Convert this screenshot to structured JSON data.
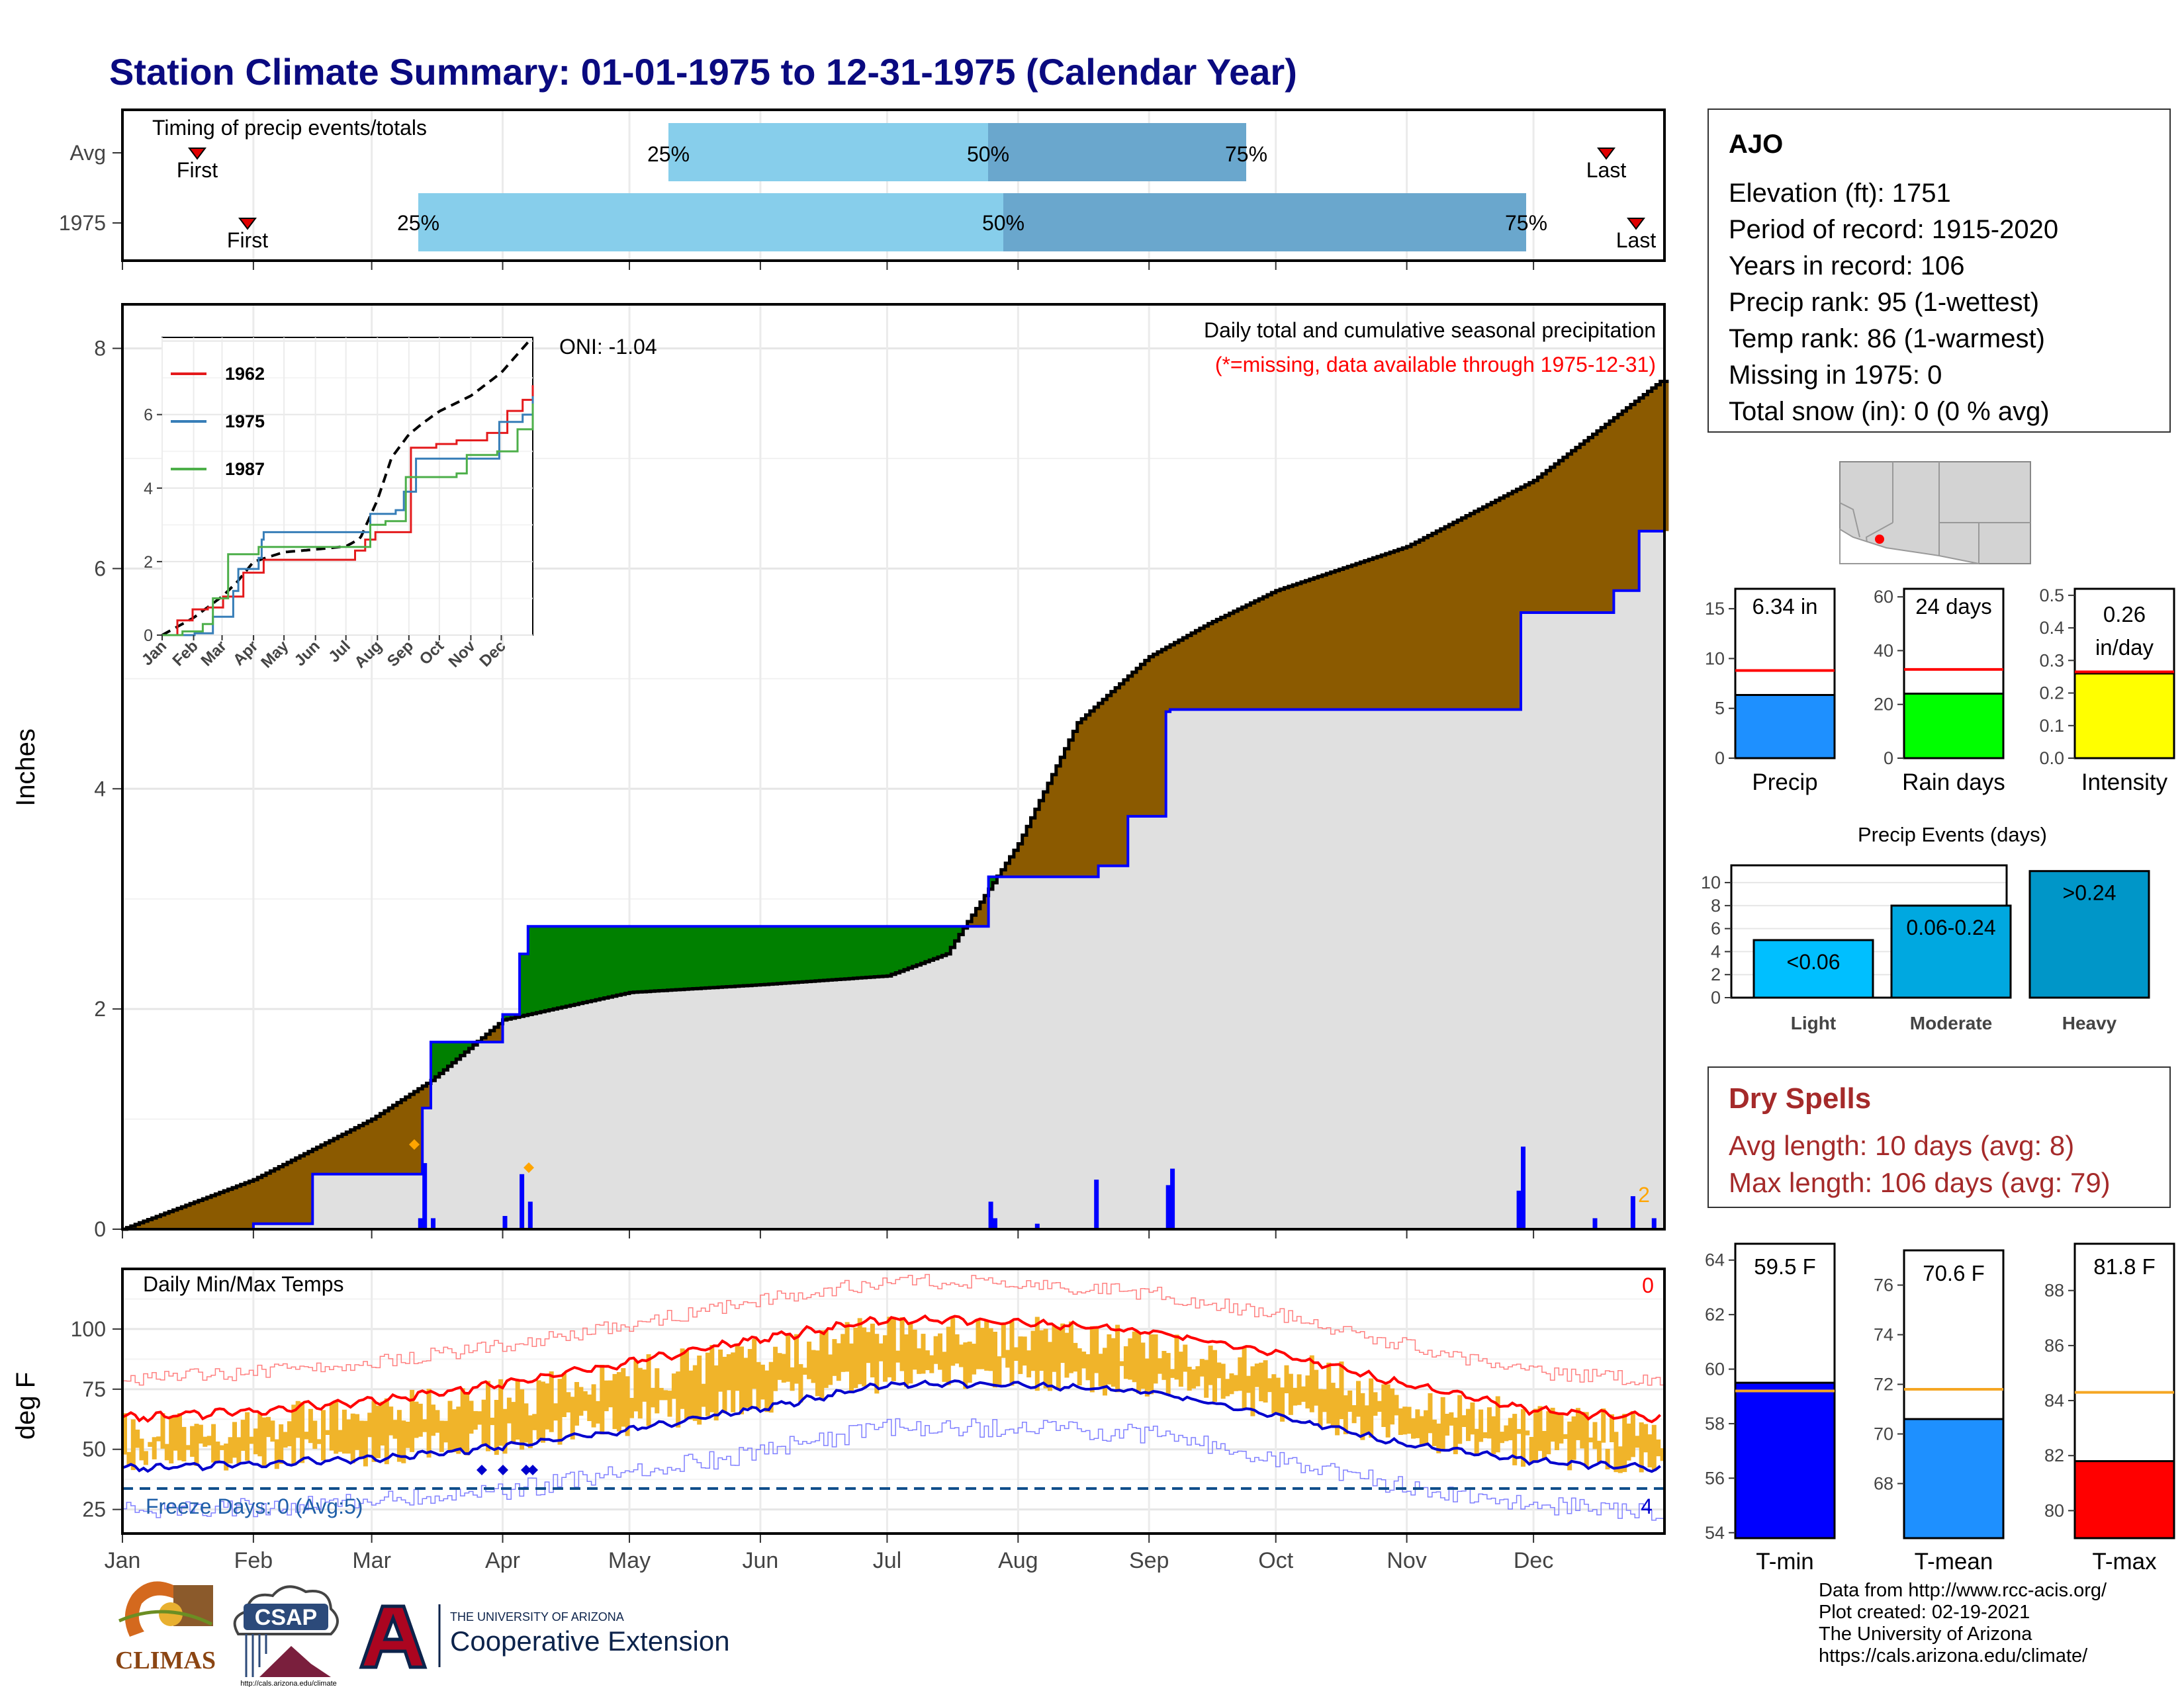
{
  "title": "Station Climate Summary: 01-01-1975 to 12-31-1975 (Calendar Year)",
  "colors": {
    "title": "#0a0a80",
    "q_light": "#87ceeb",
    "q_dark": "#6aa7cd",
    "surplus": "#008000",
    "deficit": "#8b5a00",
    "area_gray": "#e0e0e0",
    "cum_line": "#0000ff",
    "daily_bar": "#0000ff",
    "marker": "#ffa500",
    "temp_bar": "#f0b42a",
    "tmax_line": "#ff0000",
    "tmin_line": "#0000cd",
    "precip_bar": "#1e90ff",
    "raindays_bar": "#00ff00",
    "intensity_bar": "#ffff00",
    "events_bar": "#00a8e0",
    "tmin_bar": "#0000ff",
    "tmean_bar": "#1e90ff",
    "tmax_bar": "#ff0000",
    "dry_text": "#a52a2a",
    "avg_line": "#ff0000",
    "temp_avg_line": "#f5a623"
  },
  "timing": {
    "title": "Timing of precip events/totals",
    "rows": [
      "Avg",
      "1975"
    ],
    "first_label": "First",
    "last_label": "Last",
    "p25": "25%",
    "p50": "50%",
    "p75": "75%"
  },
  "precip": {
    "ylabel": "Inches",
    "annot_title": "Daily total and cumulative seasonal precipitation",
    "annot_missing": "(*=missing, data available through 1975-12-31)",
    "oni": "ONI: -1.04",
    "corner_count": "2",
    "y_ticks": [
      "0",
      "2",
      "4",
      "6",
      "8"
    ]
  },
  "inset": {
    "legend": [
      "1962",
      "1975",
      "1987"
    ],
    "y_ticks": [
      "0",
      "2",
      "4",
      "6"
    ],
    "months": [
      "Jan",
      "Feb",
      "Mar",
      "Apr",
      "May",
      "Jun",
      "Jul",
      "Aug",
      "Sep",
      "Oct",
      "Nov",
      "Dec"
    ]
  },
  "temps": {
    "title": "Daily Min/Max Temps",
    "ylabel": "deg F",
    "freeze": "Freeze Days: 0 (Avg:5)",
    "corner_top": "0",
    "corner_bottom": "4",
    "y_ticks": [
      "25",
      "50",
      "75",
      "100"
    ]
  },
  "months": [
    "Jan",
    "Feb",
    "Mar",
    "Apr",
    "May",
    "Jun",
    "Jul",
    "Aug",
    "Sep",
    "Oct",
    "Nov",
    "Dec"
  ],
  "station": {
    "name": "AJO",
    "elevation": "Elevation (ft): 1751",
    "period": "Period of record: 1915-2020",
    "years": "Years in record: 106",
    "precip_rank": "Precip rank: 95 (1-wettest)",
    "temp_rank": "Temp rank: 86 (1-warmest)",
    "missing": "Missing in 1975: 0",
    "snow": "Total snow (in): 0 (0 % avg)"
  },
  "mini_bars": [
    {
      "label": "Precip",
      "value_label": "6.34 in",
      "value": 6.34,
      "avg": 8.8,
      "max": 17,
      "ticks": [
        "0",
        "5",
        "10",
        "15"
      ]
    },
    {
      "label": "Rain days",
      "value_label": "24 days",
      "value": 24,
      "avg": 33,
      "max": 63,
      "ticks": [
        "0",
        "20",
        "40",
        "60"
      ]
    },
    {
      "label": "Intensity",
      "value_label_1": "0.26",
      "value_label_2": "in/day",
      "value": 0.26,
      "avg": 0.265,
      "max": 0.52,
      "ticks": [
        "0.0",
        "0.1",
        "0.2",
        "0.3",
        "0.4",
        "0.5"
      ]
    }
  ],
  "events": {
    "title": "Precip Events (days)",
    "categories": [
      "Light",
      "Moderate",
      "Heavy"
    ],
    "bar_labels": [
      "<0.06",
      "0.06-0.24",
      ">0.24"
    ],
    "values": [
      5,
      8,
      11
    ],
    "ticks": [
      "0",
      "2",
      "4",
      "6",
      "8",
      "10"
    ]
  },
  "dry": {
    "title": "Dry Spells",
    "avg": "Avg length: 10 days (avg: 8)",
    "max": "Max length: 106 days (avg: 79)"
  },
  "temp_bars": [
    {
      "label": "T-min",
      "value_label": "59.5 F",
      "value": 59.5,
      "avg": 59.2,
      "ymin": 53.8,
      "ymax": 64.6,
      "ticks": [
        "54",
        "56",
        "58",
        "60",
        "62",
        "64"
      ]
    },
    {
      "label": "T-mean",
      "value_label": "70.6 F",
      "value": 70.6,
      "avg": 71.8,
      "ymin": 65.8,
      "ymax": 77.4,
      "ticks": [
        "68",
        "70",
        "72",
        "74",
        "76"
      ]
    },
    {
      "label": "T-max",
      "value_label": "81.8 F",
      "value": 81.8,
      "avg": 84.3,
      "ymin": 79.0,
      "ymax": 89.7,
      "ticks": [
        "80",
        "82",
        "84",
        "86",
        "88"
      ]
    }
  ],
  "credits": [
    "Data from http://www.rcc-acis.org/",
    "Plot created: 02-19-2021",
    "The University of Arizona",
    "https://cals.arizona.edu/climate/"
  ],
  "logos": {
    "climas": "CLIMAS",
    "csap": "CSAP",
    "csap_url": "http://cals.arizona.edu/climate",
    "ua_letter": "A",
    "ua_small": "THE UNIVERSITY OF ARIZONA",
    "ua_big": "Cooperative Extension"
  },
  "chart_data": [
    {
      "type": "bar",
      "title": "Timing of precip events/totals",
      "categories": [
        "Avg",
        "1975"
      ],
      "series": [
        {
          "name": "First",
          "values": [
            "Jan 20",
            "Feb 3"
          ]
        },
        {
          "name": "25%",
          "values": [
            "May 1",
            "Mar 14"
          ]
        },
        {
          "name": "50%",
          "values": [
            "Jul 25",
            "Jul 30"
          ]
        },
        {
          "name": "75%",
          "values": [
            "Sep 20",
            "Dec 1"
          ]
        },
        {
          "name": "Last",
          "values": [
            "Dec 22",
            "Dec 30"
          ]
        }
      ]
    },
    {
      "type": "area",
      "title": "Daily total and cumulative seasonal precipitation",
      "ylabel": "Inches",
      "ylim": [
        0,
        8.4
      ],
      "xlim": [
        "1975-01-01",
        "1975-12-31"
      ],
      "series": [
        {
          "name": "1975",
          "x": [
            "01-01",
            "02-01",
            "02-15",
            "03-13",
            "03-15",
            "04-01",
            "04-05",
            "04-07",
            "07-20",
            "07-25",
            "08-01",
            "08-20",
            "08-27",
            "09-05",
            "09-06",
            "11-25",
            "11-28",
            "12-20",
            "12-26"
          ],
          "values": [
            0.0,
            0.05,
            0.5,
            1.1,
            1.7,
            1.95,
            2.5,
            2.75,
            2.75,
            3.2,
            3.2,
            3.3,
            3.75,
            4.7,
            4.72,
            4.72,
            5.6,
            5.8,
            6.34
          ]
        },
        {
          "name": "Avg",
          "x": [
            "01-01",
            "02-01",
            "03-01",
            "03-15",
            "04-01",
            "05-01",
            "06-01",
            "07-01",
            "07-15",
            "08-01",
            "08-15",
            "09-01",
            "09-15",
            "10-01",
            "11-01",
            "12-01",
            "12-31"
          ],
          "values": [
            0.0,
            0.45,
            1.0,
            1.35,
            1.9,
            2.15,
            2.22,
            2.3,
            2.5,
            3.5,
            4.6,
            5.2,
            5.5,
            5.8,
            6.2,
            6.8,
            7.7
          ]
        },
        {
          "name": "Daily",
          "x": [
            "03-12",
            "03-13",
            "03-15",
            "04-01",
            "04-05",
            "04-07",
            "07-25",
            "07-26",
            "08-05",
            "08-19",
            "09-05",
            "09-06",
            "11-27",
            "11-28",
            "12-15",
            "12-24",
            "12-29"
          ],
          "values": [
            0.1,
            0.6,
            0.1,
            0.12,
            0.5,
            0.25,
            0.25,
            0.1,
            0.05,
            0.45,
            0.4,
            0.55,
            0.35,
            0.75,
            0.1,
            0.3,
            0.1
          ]
        }
      ]
    },
    {
      "type": "line",
      "title": "Daily Min/Max Temps",
      "ylabel": "deg F",
      "ylim": [
        15,
        125
      ],
      "xlim": [
        "1975-01-01",
        "1975-12-31"
      ],
      "series": [
        {
          "name": "Avg max",
          "x": [
            "01-01",
            "02-01",
            "03-01",
            "04-01",
            "05-01",
            "06-01",
            "07-01",
            "08-01",
            "09-01",
            "10-01",
            "11-01",
            "12-01",
            "12-31"
          ],
          "values": [
            63,
            66,
            70,
            77,
            86,
            96,
            104,
            103,
            99,
            90,
            77,
            66,
            63
          ]
        },
        {
          "name": "Avg min",
          "x": [
            "01-01",
            "02-01",
            "03-01",
            "04-01",
            "05-01",
            "06-01",
            "07-01",
            "08-01",
            "09-01",
            "10-01",
            "11-01",
            "12-01",
            "12-31"
          ],
          "values": [
            42,
            44,
            46,
            51,
            58,
            67,
            77,
            77,
            74,
            64,
            52,
            45,
            42
          ]
        }
      ]
    },
    {
      "type": "bar",
      "categories": [
        "Precip"
      ],
      "values": [
        6.34
      ],
      "ylim": [
        0,
        17
      ]
    },
    {
      "type": "bar",
      "categories": [
        "Rain days"
      ],
      "values": [
        24
      ],
      "ylim": [
        0,
        63
      ]
    },
    {
      "type": "bar",
      "categories": [
        "Intensity"
      ],
      "values": [
        0.26
      ],
      "ylim": [
        0,
        0.52
      ]
    },
    {
      "type": "bar",
      "title": "Precip Events (days)",
      "categories": [
        "Light",
        "Moderate",
        "Heavy"
      ],
      "values": [
        5,
        8,
        11
      ],
      "ylim": [
        0,
        11.5
      ]
    },
    {
      "type": "bar",
      "categories": [
        "T-min",
        "T-mean",
        "T-max"
      ],
      "values": [
        59.5,
        70.6,
        81.8
      ]
    }
  ]
}
